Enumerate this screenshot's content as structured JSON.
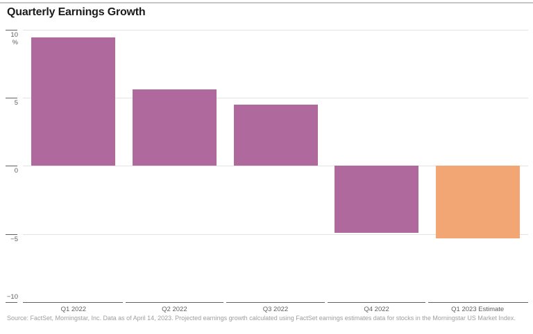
{
  "chart": {
    "title": "Quarterly Earnings Growth",
    "unit_label": "%",
    "source": "Source: FactSet, Morningstar, Inc. Data as of April 14, 2023. Projected earnings growth calculated using FactSet earnings estimates data for stocks in the Morningstar US Market Index."
  },
  "chart_data": {
    "type": "bar",
    "title": "Quarterly Earnings Growth",
    "categories": [
      "Q1 2022",
      "Q2 2022",
      "Q3 2022",
      "Q4 2022",
      "Q1 2023 Estimate"
    ],
    "values": [
      9.4,
      5.6,
      4.5,
      -4.9,
      -5.3
    ],
    "bar_colors": [
      "#af699d",
      "#af699d",
      "#af699d",
      "#af699d",
      "#f2a673"
    ],
    "xlabel": "",
    "ylabel": "%",
    "ylim": [
      -10,
      10
    ],
    "yticks": [
      10,
      5,
      0,
      -5,
      -10
    ],
    "grid": true,
    "legend": false,
    "colors": {
      "actual_bar": "#af699d",
      "estimate_bar": "#f2a673",
      "gridline": "#e3e3e3",
      "axis": "#5e5e5e",
      "tick_label": "#5e5e5e",
      "title_text": "#1a1a1a",
      "source_text": "#9e9e9e",
      "top_rule": "#c6c6c6"
    }
  }
}
